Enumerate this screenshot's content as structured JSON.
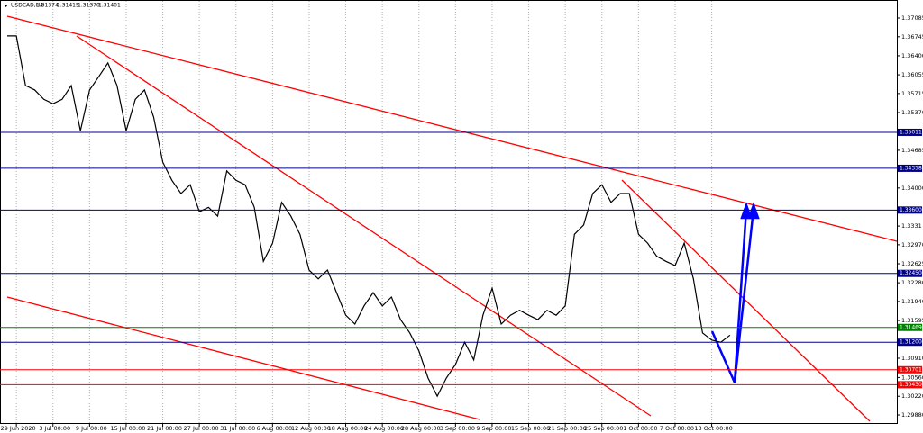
{
  "chart_data": {
    "type": "line",
    "symbol": "USDCAD,H4",
    "quote": [
      "1.31374",
      "1.31415",
      "1.31370",
      "1.31401"
    ],
    "categories": [
      null,
      "29 Jun 2020",
      null,
      null,
      null,
      "3 Jul 00:00",
      null,
      null,
      null,
      "9 Jul 00:00",
      null,
      null,
      null,
      "15 Jul 00:00",
      null,
      null,
      null,
      "21 Jul 00:00",
      null,
      null,
      null,
      "27 Jul 00:00",
      null,
      null,
      null,
      "31 Jul 00:00",
      null,
      null,
      null,
      "6 Aug 00:00",
      null,
      null,
      null,
      "12 Aug 00:00",
      null,
      null,
      null,
      "18 Aug 00:00",
      null,
      null,
      null,
      "24 Aug 00:00",
      null,
      null,
      null,
      "28 Aug 00:00",
      null,
      null,
      null,
      "3 Sep 00:00",
      null,
      null,
      null,
      "9 Sep 00:00",
      null,
      null,
      null,
      "15 Sep 00:00",
      null,
      null,
      null,
      "21 Sep 00:00",
      null,
      null,
      null,
      "25 Sep 00:00",
      null,
      null,
      null,
      "1 Oct 00:00",
      null,
      null,
      null,
      "7 Oct 00:00",
      null,
      null,
      null,
      "13 Oct 00:00",
      null,
      null
    ],
    "series": [
      {
        "color": "#000000",
        "values": [
          1.3676,
          1.3676,
          1.3586,
          1.3578,
          1.3561,
          1.3553,
          1.3561,
          1.3586,
          1.3504,
          1.3578,
          1.3602,
          1.3627,
          1.3586,
          1.3504,
          1.3561,
          1.3578,
          1.3529,
          1.3447,
          1.3414,
          1.339,
          1.3406,
          1.3357,
          1.3365,
          1.3349,
          1.3431,
          1.3414,
          1.3406,
          1.3365,
          1.3267,
          1.33,
          1.3374,
          1.3349,
          1.3316,
          1.3251,
          1.3235,
          1.3251,
          1.321,
          1.3169,
          1.3153,
          1.3186,
          1.321,
          1.3186,
          1.3202,
          1.3161,
          1.3137,
          1.3104,
          1.3055,
          1.3022,
          1.3055,
          1.308,
          1.312,
          1.3088,
          1.3169,
          1.3218,
          1.3153,
          1.3169,
          1.3178,
          1.3169,
          1.3161,
          1.3178,
          1.3169,
          1.3186,
          1.3316,
          1.3333,
          1.339,
          1.3406,
          1.3374,
          1.339,
          1.339,
          1.3316,
          1.33,
          1.3276,
          1.3267,
          1.3259,
          1.33,
          1.3235,
          1.3137,
          1.3124,
          1.312,
          1.3133
        ]
      }
    ],
    "ylim": [
      1.29717,
      1.37412
    ],
    "yticks": [
      1.37085,
      1.36745,
      {
        "value": 1.364,
        "label": "1.36400"
      },
      1.36055,
      1.35715,
      {
        "value": 1.3537,
        "label": "1.35370"
      },
      1.34685,
      {
        "value": 1.34,
        "label": "1.34000"
      },
      1.3331,
      {
        "value": 1.3297,
        "label": "1.32970"
      },
      1.32625,
      {
        "value": 1.3228,
        "label": "1.32280"
      },
      {
        "value": 1.3194,
        "label": "1.31940"
      },
      1.31595,
      {
        "value": 1.3091,
        "label": "1.30910"
      },
      {
        "value": 1.3056,
        "label": "1.30560"
      },
      {
        "value": 1.3022,
        "label": "1.30220"
      },
      {
        "value": 1.2988,
        "label": "1.29880"
      }
    ],
    "levels": [
      {
        "value": 1.35011,
        "label": "1.35011",
        "color": "#00008b"
      },
      {
        "value": 1.34358,
        "label": "1.34358",
        "color": "#00008b"
      },
      {
        "value": 1.336,
        "label": "1.33600",
        "color": "#00008b"
      },
      {
        "value": 1.3245,
        "label": "1.32450",
        "color": "#00008b"
      },
      {
        "value": 1.31469,
        "label": "1.31469",
        "color": "#008000"
      },
      {
        "value": 1.312,
        "label": "1.31200",
        "color": "#00008b"
      },
      {
        "value": 1.30701,
        "label": "1.30701",
        "color": "#ff0000"
      },
      {
        "value": 1.3043,
        "label": "1.30430",
        "color": "#ff0000"
      }
    ],
    "grid": true
  }
}
